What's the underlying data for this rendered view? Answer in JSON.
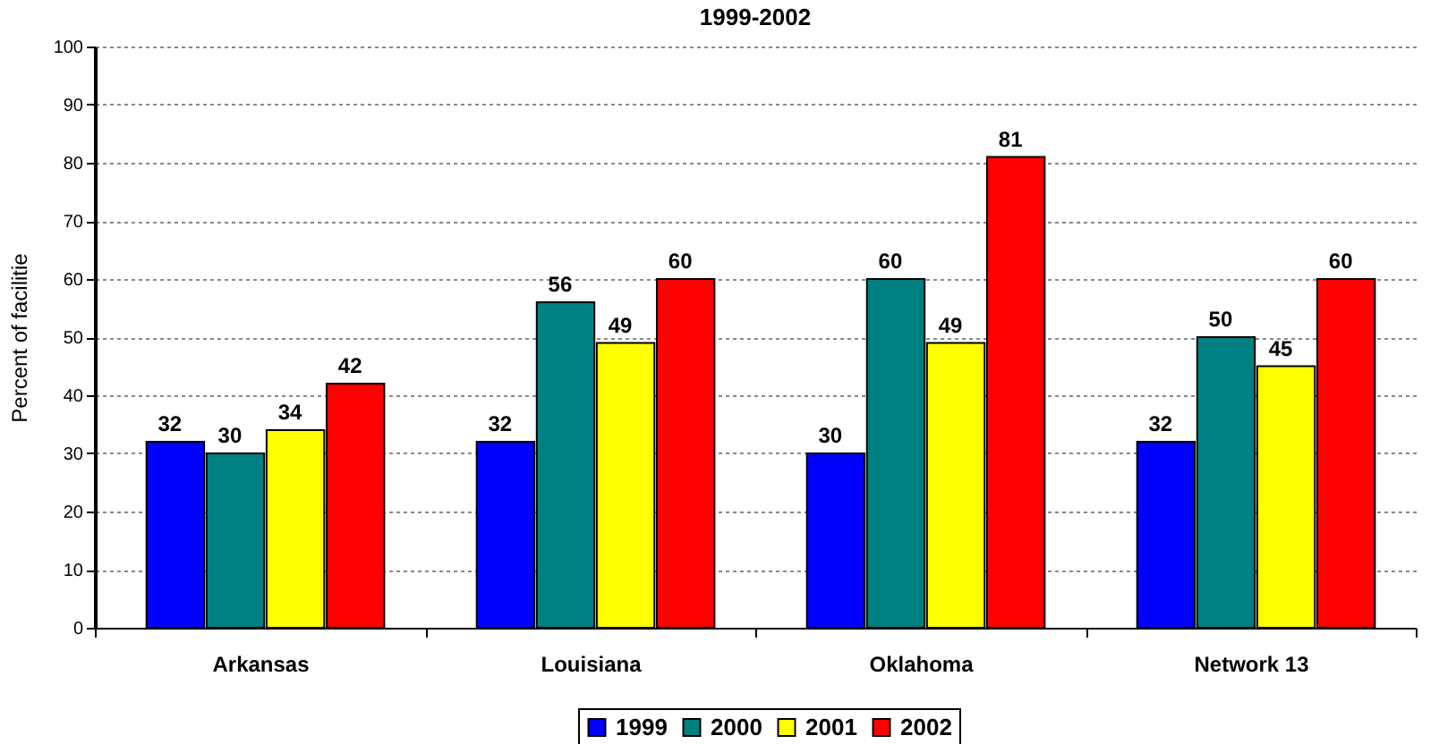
{
  "chart_data": {
    "type": "bar",
    "title": "1999-2002",
    "ylabel": "Percent of facilitie",
    "categories": [
      "Arkansas",
      "Louisiana",
      "Oklahoma",
      "Network 13"
    ],
    "series": [
      {
        "name": "1999",
        "color": "#0000ff",
        "values": [
          32,
          32,
          30,
          32
        ]
      },
      {
        "name": "2000",
        "color": "#008080",
        "values": [
          30,
          56,
          60,
          50
        ]
      },
      {
        "name": "2001",
        "color": "#ffff00",
        "values": [
          34,
          49,
          49,
          45
        ]
      },
      {
        "name": "2002",
        "color": "#ff0000",
        "values": [
          42,
          60,
          81,
          60
        ]
      }
    ],
    "ylim": [
      0,
      100
    ],
    "yticks": [
      0,
      10,
      20,
      30,
      40,
      50,
      60,
      70,
      80,
      90,
      100
    ],
    "grid": "y",
    "legend": "bottom",
    "data_labels": true
  }
}
